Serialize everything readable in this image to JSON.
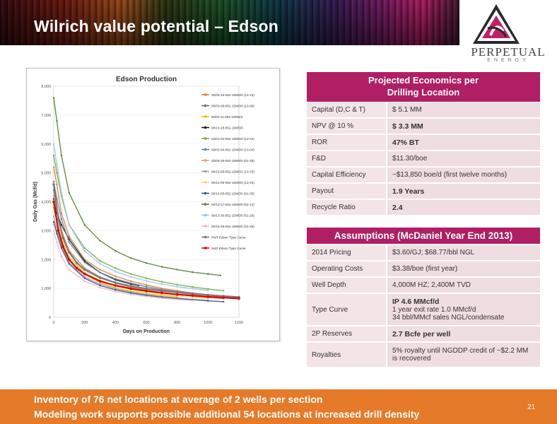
{
  "title": "Wilrich value potential – Edson",
  "logo": {
    "name": "Perpetual",
    "sub": "ENERGY"
  },
  "economics": {
    "header_line1": "Projected Economics per",
    "header_line2": "Drilling Location",
    "rows": [
      {
        "label": "Capital (D,C & T)",
        "value": "$ 5.1 MM",
        "bold": false
      },
      {
        "label": "NPV @ 10 %",
        "value": "$ 3.3 MM",
        "bold": true
      },
      {
        "label": "ROR",
        "value": "47% BT",
        "bold": true
      },
      {
        "label": "F&D",
        "value": "$11.30/boe",
        "bold": false
      },
      {
        "label": "Capital Efficiency",
        "value": "~$13,850 boe/d  (first twelve months)",
        "bold": false
      },
      {
        "label": "Payout",
        "value": "1.9 Years",
        "bold": true
      },
      {
        "label": "Recycle Ratio",
        "value": "2.4",
        "bold": true
      }
    ]
  },
  "assumptions": {
    "header": "Assumptions (McDaniel Year End 2013)",
    "rows": [
      {
        "label": "2014 Pricing",
        "lines": [
          "$3.60/GJ; $68.77/bbl NGL"
        ]
      },
      {
        "label": "Operating Costs",
        "lines": [
          "$3.38/boe  (first year)"
        ]
      },
      {
        "label": "Well Depth",
        "lines": [
          "4,000M HZ; 2,400M TVD"
        ]
      },
      {
        "label": "Type Curve",
        "lines": [
          "IP 4.6 MMcf/d",
          "1 year exit rate 1.0 MMcf/d",
          "34 bbl/MMcf sales NGL/condensate"
        ],
        "bold_first": true
      },
      {
        "label": "2P Reserves",
        "lines": [
          "2.7 Bcfe per well"
        ],
        "bold_first": true
      },
      {
        "label": "Royalties",
        "lines": [
          "5% royalty until NGDDP credit of ~$2.2 MM",
          "is recovered"
        ]
      }
    ]
  },
  "footer": {
    "line1": "Inventory of 76 net locations at average of 2 wells per section",
    "line2": "Modeling work supports possible additional 54 locations at increased drill density",
    "page": "21"
  },
  "chart_data": {
    "type": "line",
    "title": "Edson Production",
    "xlabel": "Days on Production",
    "ylabel": "Daily Gas (Mcf/d)",
    "xlim": [
      0,
      1200
    ],
    "ylim": [
      0,
      8000
    ],
    "xticks": [
      "0",
      "200",
      "400",
      "600",
      "800",
      "1000",
      "1200"
    ],
    "yticks": [
      "0",
      "1,000",
      "2,000",
      "3,000",
      "4,000",
      "5,000",
      "6,000",
      "7,000",
      "8,000"
    ],
    "legend_position": "right",
    "series": [
      {
        "name": "00/05-16-052-15W5/0 (13-10)",
        "color": "#e87b26",
        "x": [
          0,
          20,
          50,
          100,
          200,
          300,
          400,
          500,
          600,
          700,
          800,
          900,
          1000,
          1070
        ],
        "values": [
          5200,
          4600,
          3600,
          2800,
          2000,
          1650,
          1420,
          1250,
          1120,
          1000,
          920,
          840,
          780,
          720
        ]
      },
      {
        "name": "00/03-09-052-15W5/0 (13-09)",
        "color": "#6d6d6d",
        "x": [
          0,
          20,
          50,
          100,
          200,
          300,
          400,
          500,
          600,
          700,
          800,
          900,
          1000,
          1100
        ],
        "values": [
          4400,
          3800,
          3000,
          2300,
          1700,
          1400,
          1200,
          1050,
          940,
          860,
          790,
          740,
          690,
          650
        ]
      },
      {
        "name": "00/03-11-052-16W5/2",
        "color": "#f2c200",
        "x": [
          0,
          20,
          50,
          100,
          200,
          300,
          400,
          500,
          600,
          700,
          800
        ],
        "values": [
          3800,
          3300,
          2700,
          2100,
          1500,
          1200,
          1020,
          900,
          820,
          760,
          710
        ]
      },
      {
        "name": "00/14-28-051-16W5/0",
        "color": "#1a1a1a",
        "x": [
          0,
          20,
          50,
          100,
          200,
          300,
          400,
          500,
          550
        ],
        "values": [
          4100,
          3600,
          3200,
          2700,
          1950,
          1550,
          1300,
          1150,
          1100
        ]
      },
      {
        "name": "02/01-04-052-15W5/0 (13-04)",
        "color": "#70ad47",
        "x": [
          0,
          20,
          50,
          100,
          200,
          300,
          400,
          500,
          600,
          700,
          800,
          900,
          1000,
          1100
        ],
        "values": [
          5600,
          5000,
          4200,
          3200,
          2400,
          1950,
          1700,
          1500,
          1350,
          1230,
          1130,
          1050,
          980,
          920
        ]
      },
      {
        "name": "00/02-04-052-15W5/0 (13-04)",
        "color": "#4f81bd",
        "x": [
          0,
          20,
          50,
          100,
          200,
          300,
          400,
          500,
          600,
          700,
          800,
          900,
          1000,
          1100
        ],
        "values": [
          4700,
          4100,
          3400,
          2600,
          1900,
          1550,
          1330,
          1180,
          1060,
          960,
          890,
          830,
          780,
          740
        ]
      },
      {
        "name": "00/06-36-052-15W5/0 (01-36)",
        "color": "#e89a5a",
        "x": [
          0,
          20,
          50,
          100,
          200,
          300,
          400,
          500,
          600,
          700,
          800,
          900,
          1000,
          1100
        ],
        "values": [
          4200,
          3700,
          3000,
          2300,
          1700,
          1400,
          1180,
          1030,
          930,
          850,
          790,
          730,
          690,
          650
        ]
      },
      {
        "name": "00/15-05-052-15W5/2 (13-33)",
        "color": "#a5a5a5",
        "x": [
          0,
          20,
          50,
          100,
          200,
          300,
          400,
          500,
          600,
          700,
          800,
          900,
          1000
        ],
        "values": [
          3500,
          3000,
          2500,
          1900,
          1400,
          1150,
          990,
          870,
          790,
          720,
          670,
          620,
          590
        ]
      },
      {
        "name": "00/12-05-052-15W5/0 (13-33)",
        "color": "#ffd966",
        "x": [
          0,
          20,
          50,
          100,
          200,
          300,
          400,
          500,
          600,
          700,
          800,
          900,
          1000
        ],
        "values": [
          3900,
          3400,
          2800,
          2100,
          1550,
          1280,
          1090,
          960,
          870,
          800,
          740,
          690,
          650
        ]
      },
      {
        "name": "00/14-05-052-15W5/0 (01-05)",
        "color": "#2f5597",
        "x": [
          0,
          20,
          50,
          100,
          200,
          300,
          400,
          500,
          600,
          700,
          800,
          900,
          1000,
          1100
        ],
        "values": [
          3300,
          2900,
          2400,
          1850,
          1350,
          1100,
          950,
          840,
          760,
          700,
          650,
          610,
          570,
          540
        ]
      },
      {
        "name": "00/13-17-052-16W5/0 (01-13)",
        "color": "#548235",
        "x": [
          0,
          20,
          50,
          100,
          200,
          300,
          400,
          500,
          600,
          700,
          800,
          900,
          1000,
          1080
        ],
        "values": [
          7600,
          6800,
          5600,
          4300,
          3200,
          2650,
          2300,
          2050,
          1880,
          1750,
          1650,
          1560,
          1500,
          1450
        ]
      },
      {
        "name": "00/13-36-052-15W5/0 (01-26)",
        "color": "#9dc3e6",
        "x": [
          0,
          20,
          50,
          100,
          200,
          300,
          400,
          500,
          600,
          700,
          800,
          900,
          1000
        ],
        "values": [
          6000,
          5300,
          4300,
          3200,
          2300,
          1850,
          1580,
          1400,
          1260,
          1150,
          1060,
          990,
          930
        ]
      },
      {
        "name": "00/15-36-052-15W5/0 (01-36)",
        "color": "#f4b6c2",
        "x": [
          0,
          20,
          50,
          100,
          200,
          300,
          400,
          500,
          600,
          700,
          800,
          900
        ],
        "values": [
          3000,
          2600,
          2100,
          1650,
          1250,
          1030,
          890,
          790,
          720,
          660,
          620,
          580
        ]
      },
      {
        "name": "PMT Edson Type Curve",
        "color": "#7a7a7a",
        "x": [
          0,
          30,
          60,
          100,
          150,
          200,
          300,
          400,
          500,
          600,
          700,
          800,
          900,
          1000,
          1100,
          1200
        ],
        "values": [
          4600,
          3400,
          2750,
          2250,
          1880,
          1650,
          1370,
          1200,
          1080,
          990,
          920,
          860,
          810,
          770,
          735,
          700
        ]
      },
      {
        "name": "McD Edson Type Curve",
        "color": "#e00000",
        "x": [
          0,
          30,
          60,
          100,
          150,
          200,
          300,
          400,
          500,
          600,
          700,
          800,
          900,
          1000,
          1100,
          1200
        ],
        "values": [
          4000,
          3000,
          2450,
          2000,
          1700,
          1500,
          1250,
          1100,
          990,
          910,
          850,
          790,
          750,
          710,
          680,
          650
        ]
      }
    ]
  }
}
